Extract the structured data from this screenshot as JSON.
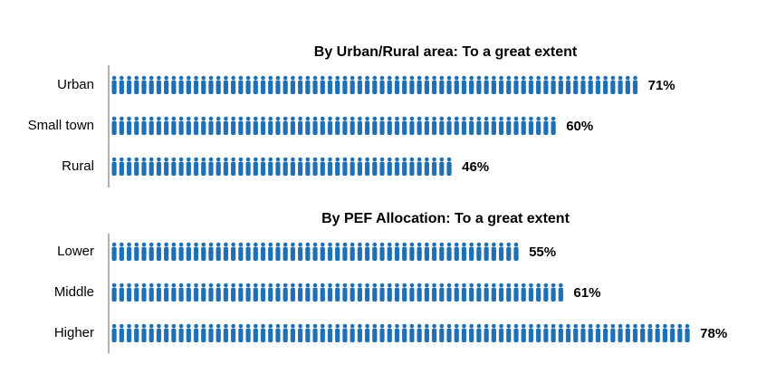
{
  "chart_data": [
    {
      "type": "pictogram",
      "title": "By Urban/Rural area: To a great extent",
      "categories": [
        "Urban",
        "Small town",
        "Rural"
      ],
      "values": [
        71,
        60,
        46
      ],
      "value_labels": [
        "71%",
        "60%",
        "46%"
      ],
      "color": "#1f6fb5"
    },
    {
      "type": "pictogram",
      "title": "By PEF Allocation: To a great extent",
      "categories": [
        "Lower",
        "Middle",
        "Higher"
      ],
      "values": [
        55,
        61,
        78
      ],
      "value_labels": [
        "55%",
        "61%",
        "78%"
      ],
      "color": "#1f6fb5"
    }
  ]
}
